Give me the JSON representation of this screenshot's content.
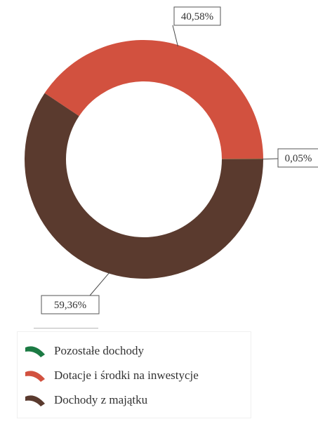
{
  "chart_data": {
    "type": "pie",
    "donut": true,
    "start_from": "right, counter-clockwise",
    "slices": [
      {
        "name": "Pozostałe dochody",
        "value": 0.05,
        "label": "0,05%",
        "color": "#1b7a43"
      },
      {
        "name": "Dotacje i środki na inwestycje",
        "value": 40.58,
        "label": "40,58%",
        "color": "#d2513f"
      },
      {
        "name": "Dochody z majątku",
        "value": 59.36,
        "label": "59,36%",
        "color": "#5a3a2e"
      }
    ],
    "legend_placement": "bottom"
  }
}
